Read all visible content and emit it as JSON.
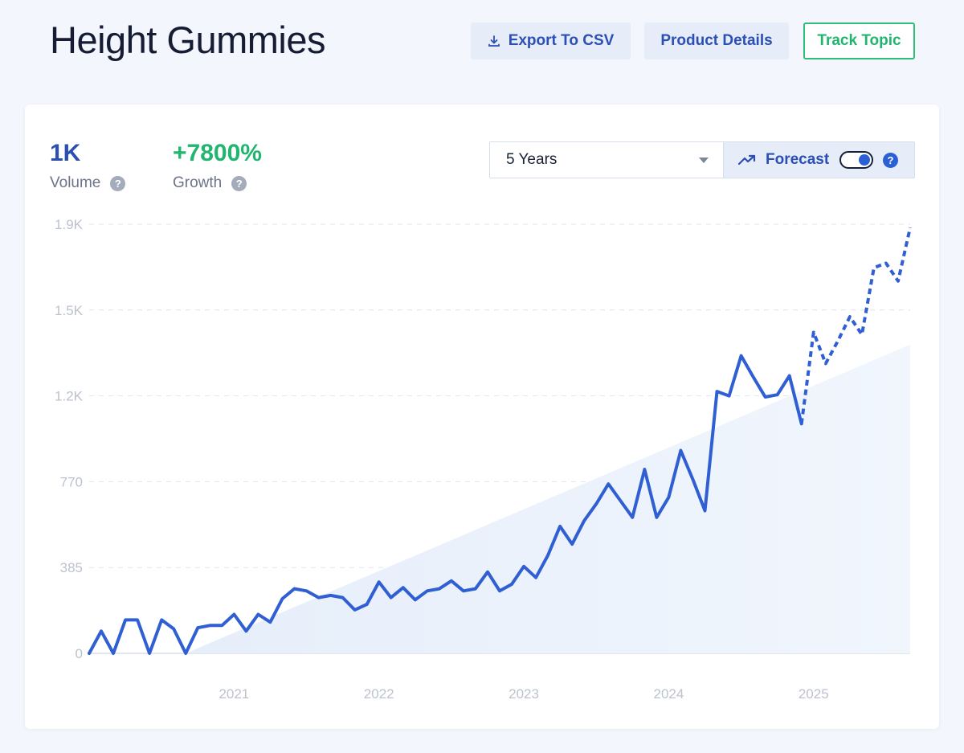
{
  "header": {
    "title": "Height Gummies",
    "export_label": "Export To CSV",
    "details_label": "Product Details",
    "track_label": "Track Topic"
  },
  "metrics": {
    "volume_value": "1K",
    "volume_label": "Volume",
    "growth_value": "+7800%",
    "growth_label": "Growth"
  },
  "controls": {
    "range_value": "5 Years",
    "forecast_label": "Forecast",
    "forecast_on": true
  },
  "colors": {
    "line": "#2f5fd3",
    "growth": "#21b56f",
    "volume": "#2b4fb3",
    "trend_fill": "#eaf1fb"
  },
  "icons": [
    "download-icon",
    "trend-up-icon",
    "help-icon",
    "chevron-down-icon"
  ],
  "chart_data": {
    "type": "line",
    "y_ticks": [
      "0",
      "385",
      "770",
      "1.2K",
      "1.5K",
      "1.9K"
    ],
    "y_tick_values": [
      0,
      385,
      770,
      1155,
      1540,
      1925
    ],
    "x_ticks": [
      "2021",
      "2022",
      "2023",
      "2024",
      "2025"
    ],
    "xlim": [
      "2020-01",
      "2025-09"
    ],
    "ylim": [
      0,
      1925
    ],
    "grid": true,
    "series": [
      {
        "style": "solid",
        "x": [
          "2020-01",
          "2020-02",
          "2020-03",
          "2020-04",
          "2020-05",
          "2020-06",
          "2020-07",
          "2020-08",
          "2020-09",
          "2020-10",
          "2020-11",
          "2020-12",
          "2021-01",
          "2021-02",
          "2021-03",
          "2021-04",
          "2021-05",
          "2021-06",
          "2021-07",
          "2021-08",
          "2021-09",
          "2021-10",
          "2021-11",
          "2021-12",
          "2022-01",
          "2022-02",
          "2022-03",
          "2022-04",
          "2022-05",
          "2022-06",
          "2022-07",
          "2022-08",
          "2022-09",
          "2022-10",
          "2022-11",
          "2022-12",
          "2023-01",
          "2023-02",
          "2023-03",
          "2023-04",
          "2023-05",
          "2023-06",
          "2023-07",
          "2023-08",
          "2023-09",
          "2023-10",
          "2023-11",
          "2023-12",
          "2024-01",
          "2024-02",
          "2024-03",
          "2024-04",
          "2024-05",
          "2024-06",
          "2024-07",
          "2024-08",
          "2024-09",
          "2024-10",
          "2024-11",
          "2024-12"
        ],
        "values": [
          0,
          100,
          0,
          150,
          150,
          0,
          150,
          110,
          0,
          115,
          125,
          125,
          175,
          100,
          175,
          140,
          245,
          290,
          280,
          250,
          260,
          250,
          195,
          220,
          320,
          250,
          295,
          240,
          280,
          290,
          325,
          280,
          290,
          365,
          280,
          310,
          390,
          340,
          440,
          570,
          490,
          595,
          670,
          760,
          685,
          610,
          825,
          610,
          700,
          910,
          780,
          640,
          1175,
          1155,
          1335,
          1240,
          1150,
          1160,
          1245,
          1030
        ]
      },
      {
        "style": "dashed",
        "x": [
          "2024-12",
          "2025-01",
          "2025-02",
          "2025-03",
          "2025-04",
          "2025-05",
          "2025-06",
          "2025-07",
          "2025-08",
          "2025-09"
        ],
        "values": [
          1030,
          1440,
          1300,
          1400,
          1510,
          1430,
          1730,
          1750,
          1670,
          1910
        ]
      }
    ],
    "trend_area": {
      "x": [
        "2020-09",
        "2025-09"
      ],
      "values": [
        0,
        1385
      ]
    }
  }
}
